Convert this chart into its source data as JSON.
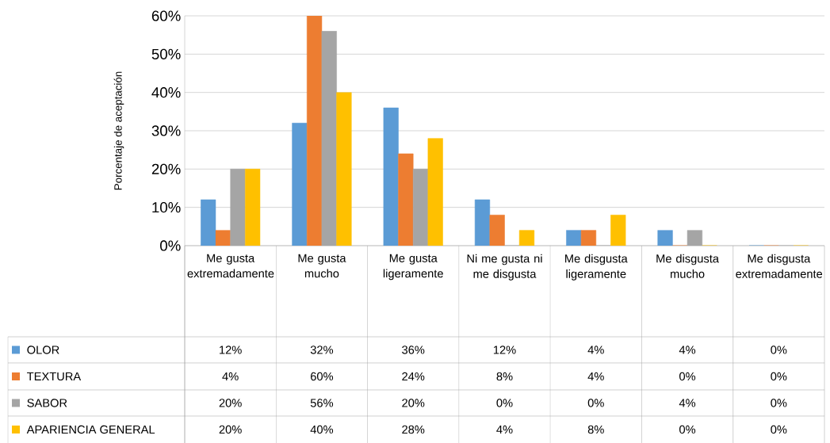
{
  "chart_data": {
    "type": "bar",
    "ylabel": "Porcentaje de aceptación",
    "categories": [
      "Me gusta extremadamente",
      "Me gusta mucho",
      "Me gusta ligeramente",
      "Ni me gusta ni me disgusta",
      "Me disgusta ligeramente",
      "Me disgusta mucho",
      "Me disgusta extremadamente"
    ],
    "series": [
      {
        "name": "OLOR",
        "color": "#5b9bd5",
        "values": [
          12,
          32,
          36,
          12,
          4,
          4,
          0
        ],
        "value_labels": [
          "12%",
          "32%",
          "36%",
          "12%",
          "4%",
          "4%",
          "0%"
        ]
      },
      {
        "name": "TEXTURA",
        "color": "#ed7d31",
        "values": [
          4,
          60,
          24,
          8,
          4,
          0,
          0
        ],
        "value_labels": [
          "4%",
          "60%",
          "24%",
          "8%",
          "4%",
          "0%",
          "0%"
        ]
      },
      {
        "name": "SABOR",
        "color": "#a5a5a5",
        "values": [
          20,
          56,
          20,
          0,
          0,
          4,
          0
        ],
        "value_labels": [
          "20%",
          "56%",
          "20%",
          "0%",
          "0%",
          "4%",
          "0%"
        ]
      },
      {
        "name": "APARIENCIA GENERAL",
        "color": "#ffc000",
        "values": [
          20,
          40,
          28,
          4,
          8,
          0,
          0
        ],
        "value_labels": [
          "20%",
          "40%",
          "28%",
          "4%",
          "8%",
          "0%",
          "0%"
        ]
      }
    ],
    "ylim": [
      0,
      60
    ],
    "yticks": [
      {
        "value": 0,
        "label": "0%"
      },
      {
        "value": 10,
        "label": "10%"
      },
      {
        "value": 20,
        "label": "20%"
      },
      {
        "value": 30,
        "label": "30%"
      },
      {
        "value": 40,
        "label": "40%"
      },
      {
        "value": 50,
        "label": "50%"
      },
      {
        "value": 60,
        "label": "60%"
      }
    ],
    "grid": "y",
    "legend": "bottom left"
  }
}
